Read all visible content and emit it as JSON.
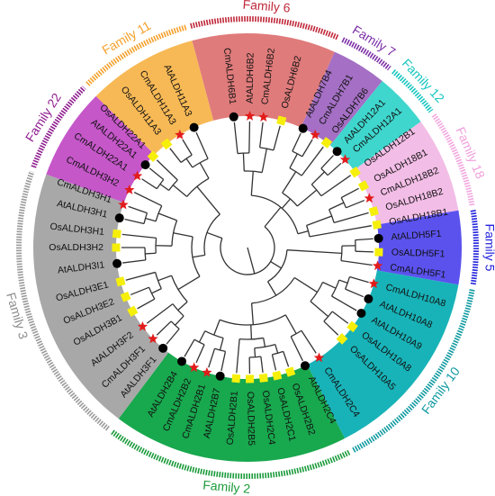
{
  "tree": {
    "families": [
      {
        "name": "Family 6",
        "color": "#e07b7b",
        "ring": "#c0283a",
        "labelColor": "#c0283a",
        "from": -15,
        "to": 24
      },
      {
        "name": "Family 7",
        "color": "#a46fc4",
        "ring": "#7b2ea6",
        "labelColor": "#7b2ea6",
        "from": 24,
        "to": 39
      },
      {
        "name": "Family 12",
        "color": "#3fd6cd",
        "ring": "#17c6c0",
        "labelColor": "#17c6c0",
        "from": 39,
        "to": 54
      },
      {
        "name": "Family 18",
        "color": "#f2bde6",
        "ring": "#f2a7df",
        "labelColor": "#f0a0dc",
        "from": 54,
        "to": 80
      },
      {
        "name": "Family 5",
        "color": "#5b52ee",
        "ring": "#2323dd",
        "labelColor": "#2323dd",
        "from": 80,
        "to": 100
      },
      {
        "name": "Family 10",
        "color": "#18b3b8",
        "ring": "#109aa0",
        "labelColor": "#109aa0",
        "from": 100,
        "to": 153
      },
      {
        "name": "Family 2",
        "color": "#18a84e",
        "ring": "#1a9a3a",
        "labelColor": "#1a9a3a",
        "from": 153,
        "to": 217
      },
      {
        "name": "Family 3",
        "color": "#a8a8a8",
        "ring": "#9a9a9a",
        "labelColor": "#8c8c8c",
        "from": 217,
        "to": 290
      },
      {
        "name": "Family 22",
        "color": "#c557c9",
        "ring": "#8e1c8e",
        "labelColor": "#8e1c8e",
        "from": 290,
        "to": 315
      },
      {
        "name": "Family 11",
        "color": "#f7b955",
        "ring": "#f5a02a",
        "labelColor": "#f5a02a",
        "from": 315,
        "to": 345
      }
    ],
    "leaves": [
      {
        "label": "CmALDH6B1",
        "angle": -6,
        "marker": "circle"
      },
      {
        "label": "AtALDH6B2",
        "angle": 1,
        "marker": "star"
      },
      {
        "label": "CmALDH6B2",
        "angle": 7,
        "marker": "star"
      },
      {
        "label": "OsALDH6B2",
        "angle": 15,
        "marker": "square"
      },
      {
        "label": "AtALDH7B4",
        "angle": 25,
        "marker": "circle"
      },
      {
        "label": "CmALDH7B1",
        "angle": 31,
        "marker": "star"
      },
      {
        "label": "OsALDH7B6",
        "angle": 37,
        "marker": "square"
      },
      {
        "label": "AtALDH12A1",
        "angle": 43,
        "marker": "circle"
      },
      {
        "label": "CmALDH12A1",
        "angle": 48,
        "marker": "star"
      },
      {
        "label": "OsALDH12B1",
        "angle": 55,
        "marker": "square"
      },
      {
        "label": "OsALDH18B1",
        "angle": 62,
        "marker": "square"
      },
      {
        "label": "CmALDH18B2",
        "angle": 68,
        "marker": "star"
      },
      {
        "label": "OsALDH18B2",
        "angle": 74,
        "marker": "square"
      },
      {
        "label": "OsALDH18B1",
        "angle": 80,
        "marker": "square"
      },
      {
        "label": "AtALDH5F1",
        "angle": 86,
        "marker": "circle"
      },
      {
        "label": "OsALDH5F1",
        "angle": 92,
        "marker": "square"
      },
      {
        "label": "CmALDH5F1",
        "angle": 98,
        "marker": "star"
      },
      {
        "label": "CmALDH10A8",
        "angle": 106,
        "marker": "star"
      },
      {
        "label": "AtALDH10A8",
        "angle": 113,
        "marker": "circle"
      },
      {
        "label": "AtALDH10A9",
        "angle": 120,
        "marker": "circle"
      },
      {
        "label": "OsALDH10A8",
        "angle": 127,
        "marker": "square"
      },
      {
        "label": "OsALDH10A5",
        "angle": 134,
        "marker": "square"
      },
      {
        "label": "CmALDH2C4",
        "angle": 147,
        "marker": "star"
      },
      {
        "label": "AtALDH2C4",
        "angle": 154,
        "marker": "circle"
      },
      {
        "label": "OsALDH2B2",
        "angle": 161,
        "marker": "square"
      },
      {
        "label": "OsALDH2C1",
        "angle": 167,
        "marker": "square"
      },
      {
        "label": "OsALDH2C4",
        "angle": 173,
        "marker": "square"
      },
      {
        "label": "OsALDH2B5",
        "angle": 179,
        "marker": "square"
      },
      {
        "label": "OsALDH2B1",
        "angle": 185,
        "marker": "square"
      },
      {
        "label": "AtALDH2B7",
        "angle": 192,
        "marker": "circle"
      },
      {
        "label": "CmALDH2B1",
        "angle": 198,
        "marker": "star"
      },
      {
        "label": "CmALDH2B2",
        "angle": 204,
        "marker": "star"
      },
      {
        "label": "AtALDH2B4",
        "angle": 210,
        "marker": "circle"
      },
      {
        "label": "AtALDH3F1",
        "angle": 220,
        "marker": "circle"
      },
      {
        "label": "CmALDH3F1",
        "angle": 226,
        "marker": "star"
      },
      {
        "label": "AtALDH3F2",
        "angle": 233,
        "marker": "star"
      },
      {
        "label": "OsALDH3B1",
        "angle": 241,
        "marker": "square"
      },
      {
        "label": "OsALDH3E2",
        "angle": 248,
        "marker": "square"
      },
      {
        "label": "OsALDH3E1",
        "angle": 255,
        "marker": "square"
      },
      {
        "label": "AtALDH3I1",
        "angle": 263,
        "marker": "circle"
      },
      {
        "label": "OsALDH3H2",
        "angle": 270,
        "marker": "square"
      },
      {
        "label": "OsALDH3H1",
        "angle": 276,
        "marker": "square"
      },
      {
        "label": "AtALDH3H1",
        "angle": 283,
        "marker": "circle"
      },
      {
        "label": "CmALDH3H1",
        "angle": 289,
        "marker": "star"
      },
      {
        "label": "CmALDH3H2",
        "angle": 296,
        "marker": "star"
      },
      {
        "label": "CmALDH22A1",
        "angle": 303,
        "marker": "star"
      },
      {
        "label": "AtALDH22A1",
        "angle": 309,
        "marker": "circle"
      },
      {
        "label": "OsALDH22A1",
        "angle": 314,
        "marker": "square"
      },
      {
        "label": "OsALDH11A3",
        "angle": 322,
        "marker": "square"
      },
      {
        "label": "CmALDH11A3",
        "angle": 329,
        "marker": "star"
      },
      {
        "label": "AtALDH11A3",
        "angle": 336,
        "marker": "circle"
      }
    ],
    "marker_colors": {
      "circle": "#000000",
      "star": "#e21b1b",
      "square": "#f6ef0a"
    }
  }
}
